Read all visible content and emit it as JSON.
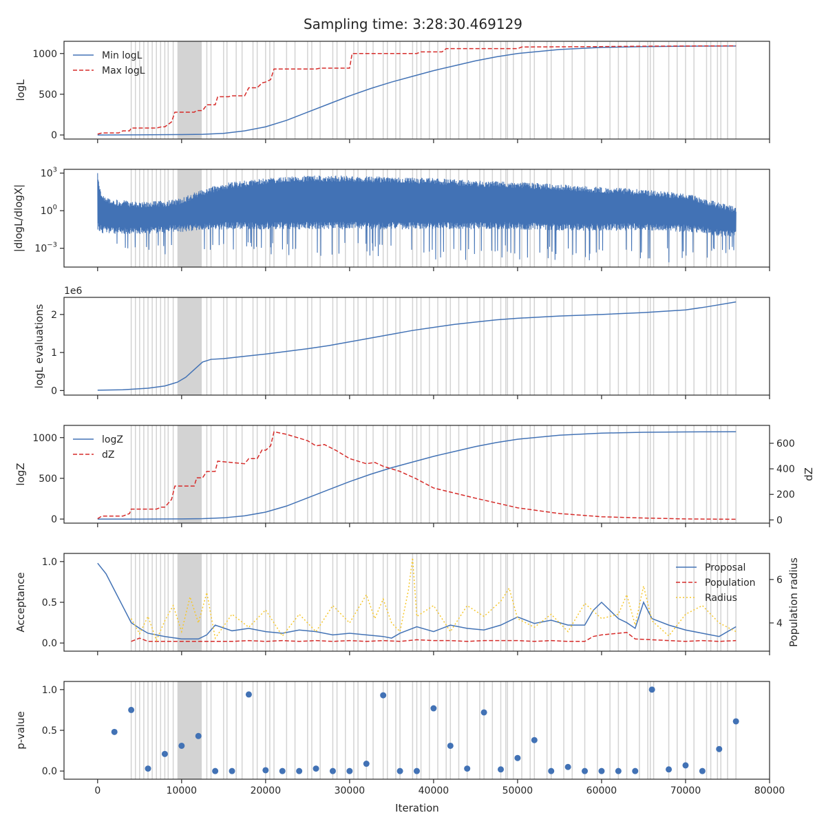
{
  "figure": {
    "title": "Sampling time: 3:28:30.469129",
    "xlabel": "Iteration",
    "xlim": [
      -4000,
      80000
    ],
    "xticks": [
      0,
      10000,
      20000,
      30000,
      40000,
      50000,
      60000,
      70000,
      80000
    ],
    "shaded_region": [
      9500,
      12400
    ],
    "vertical_lines": [
      4000,
      4500,
      5000,
      5500,
      6000,
      6500,
      7000,
      7500,
      8000,
      8400,
      9000,
      13000,
      13500,
      15000,
      15400,
      16500,
      17200,
      18500,
      19000,
      20000,
      20500,
      21000,
      22500,
      23500,
      25000,
      25500,
      26500,
      28000,
      28500,
      29500,
      30500,
      31000,
      32000,
      32800,
      34000,
      34500,
      35500,
      36000,
      37500,
      38000,
      38500,
      39500,
      40500,
      41500,
      42000,
      43000,
      44000,
      45500,
      46000,
      47000,
      48000,
      48600,
      48800,
      49500,
      50500,
      51500,
      52000,
      53500,
      54000,
      55500,
      56500,
      58000,
      59500,
      61000,
      62000,
      63000,
      64500,
      65500,
      65800,
      66200,
      68000,
      69000,
      70000,
      71000,
      72500,
      73000,
      73800,
      74200,
      75000,
      76000
    ],
    "colors": {
      "blue": "#4272b5",
      "red": "#d62a28",
      "yellow": "#f6c628",
      "grey": "#d3d3d3",
      "axis": "#262626"
    }
  },
  "chart_data": [
    {
      "type": "line",
      "ylabel": "logL",
      "ylim": [
        -50,
        1150
      ],
      "yticks": [
        0,
        500,
        1000
      ],
      "legend": "top-left",
      "series": [
        {
          "name": "Min logL",
          "style": "solid",
          "color": "#4272b5",
          "x": [
            0,
            5000,
            10000,
            12500,
            15000,
            17500,
            20000,
            22500,
            25000,
            27500,
            30000,
            32500,
            35000,
            37500,
            40000,
            42500,
            45000,
            47500,
            50000,
            55000,
            60000,
            65000,
            70000,
            76000
          ],
          "y": [
            0,
            2,
            5,
            8,
            20,
            50,
            100,
            180,
            280,
            380,
            480,
            570,
            650,
            720,
            790,
            850,
            910,
            960,
            1000,
            1050,
            1075,
            1085,
            1090,
            1092
          ]
        },
        {
          "name": "Max logL",
          "style": "dashed",
          "color": "#d62a28",
          "x": [
            0,
            500,
            2500,
            3000,
            3800,
            4000,
            7000,
            7600,
            8000,
            8800,
            9200,
            11500,
            11800,
            12500,
            13000,
            14000,
            14300,
            15600,
            16000,
            17500,
            18000,
            19000,
            19600,
            20000,
            20600,
            21000,
            26000,
            26500,
            30000,
            30300,
            38000,
            38500,
            41000,
            41500,
            50000,
            50500,
            60000,
            65000,
            70000,
            76000
          ],
          "y": [
            10,
            25,
            25,
            50,
            50,
            85,
            85,
            100,
            100,
            160,
            280,
            280,
            300,
            300,
            370,
            370,
            470,
            470,
            480,
            480,
            580,
            580,
            640,
            650,
            680,
            810,
            810,
            820,
            820,
            1000,
            1000,
            1020,
            1020,
            1060,
            1060,
            1080,
            1085,
            1090,
            1092,
            1094
          ]
        }
      ]
    },
    {
      "type": "line",
      "ylabel": "|dlogL/dlogX|",
      "yscale": "log",
      "ylim": [
        -4.5,
        3.3
      ],
      "yticks_exp": [
        -3,
        0,
        3
      ],
      "series": [
        {
          "name": "",
          "style": "noisy-band",
          "color": "#4272b5",
          "x": [
            0,
            500,
            2000,
            5000,
            8000,
            10000,
            12000,
            15000,
            20000,
            25000,
            30000,
            35000,
            40000,
            45000,
            50000,
            55000,
            60000,
            65000,
            70000,
            76000
          ],
          "upper": [
            3.0,
            1.2,
            0.9,
            0.7,
            0.8,
            1.0,
            1.6,
            2.2,
            2.6,
            2.8,
            2.8,
            2.7,
            2.6,
            2.4,
            2.3,
            2.1,
            1.9,
            1.7,
            1.4,
            0.3
          ],
          "lower": [
            -1.5,
            -1.8,
            -1.9,
            -1.9,
            -1.8,
            -1.7,
            -1.6,
            -1.5,
            -1.5,
            -1.5,
            -1.5,
            -1.5,
            -1.5,
            -1.5,
            -1.5,
            -1.6,
            -1.6,
            -1.6,
            -1.7,
            -2.2
          ],
          "dip_min": [
            -2.0,
            -2.5,
            -2.7,
            -3.6,
            -3.7,
            -3.6,
            -3.5,
            -3.2,
            -3.5,
            -3.8,
            -3.6,
            -3.7,
            -4.0,
            -3.9,
            -3.9,
            -4.1,
            -4.0,
            -4.3,
            -4.2,
            -3.3
          ]
        }
      ]
    },
    {
      "type": "line",
      "ylabel": "logL evaluations",
      "offset_label": "1e6",
      "ylim": [
        -0.12,
        2.45
      ],
      "yticks": [
        0,
        1,
        2
      ],
      "series": [
        {
          "name": "",
          "style": "solid",
          "color": "#4272b5",
          "x": [
            0,
            3000,
            6000,
            8000,
            9500,
            10500,
            11500,
            12500,
            13500,
            15000,
            17500,
            20000,
            22500,
            25000,
            27500,
            30000,
            32500,
            35000,
            37500,
            40000,
            42500,
            45000,
            47500,
            50000,
            55000,
            60000,
            65000,
            70000,
            72500,
            76000
          ],
          "y": [
            0.01,
            0.02,
            0.06,
            0.12,
            0.22,
            0.35,
            0.55,
            0.75,
            0.82,
            0.84,
            0.9,
            0.96,
            1.03,
            1.1,
            1.18,
            1.28,
            1.38,
            1.48,
            1.58,
            1.66,
            1.74,
            1.8,
            1.86,
            1.9,
            1.96,
            2.0,
            2.05,
            2.12,
            2.2,
            2.33
          ]
        }
      ]
    },
    {
      "type": "line",
      "ylabel": "logZ",
      "ylabel_right": "dZ",
      "ylim": [
        -50,
        1150
      ],
      "yticks": [
        0,
        500,
        1000
      ],
      "ylim_right": [
        -25,
        740
      ],
      "yticks_right": [
        0,
        200,
        400,
        600
      ],
      "legend": "top-left",
      "series": [
        {
          "name": "logZ",
          "style": "solid",
          "color": "#4272b5",
          "axis": "left",
          "x": [
            0,
            5000,
            10000,
            12500,
            15000,
            17500,
            20000,
            22500,
            25000,
            27500,
            30000,
            32500,
            35000,
            37500,
            40000,
            42500,
            45000,
            47500,
            50000,
            55000,
            60000,
            65000,
            70000,
            76000
          ],
          "y": [
            0,
            0,
            2,
            5,
            15,
            40,
            85,
            160,
            260,
            360,
            460,
            550,
            630,
            700,
            770,
            830,
            890,
            940,
            980,
            1030,
            1055,
            1065,
            1070,
            1072
          ]
        },
        {
          "name": "dZ",
          "style": "dashed",
          "color": "#d62a28",
          "axis": "right",
          "x": [
            0,
            500,
            2500,
            3000,
            3800,
            4000,
            7000,
            7600,
            8000,
            8800,
            9200,
            11500,
            11800,
            12500,
            13000,
            14000,
            14300,
            17500,
            18000,
            19000,
            19600,
            20000,
            20600,
            21000,
            22500,
            25000,
            26000,
            27000,
            28500,
            30000,
            32000,
            33000,
            34000,
            36000,
            38000,
            40000,
            45000,
            50000,
            55000,
            60000,
            65000,
            70000,
            76000
          ],
          "y": [
            10,
            30,
            30,
            30,
            50,
            85,
            85,
            100,
            100,
            160,
            265,
            265,
            330,
            330,
            380,
            380,
            460,
            440,
            480,
            480,
            550,
            545,
            580,
            690,
            670,
            620,
            580,
            590,
            540,
            480,
            440,
            450,
            420,
            380,
            320,
            250,
            170,
            95,
            50,
            25,
            15,
            8,
            5
          ]
        }
      ]
    },
    {
      "type": "line",
      "ylabel": "Acceptance",
      "ylabel_right": "Population radius",
      "ylim": [
        -0.1,
        1.1
      ],
      "yticks": [
        0.0,
        0.5,
        1.0
      ],
      "ylim_right": [
        2.7,
        7.2
      ],
      "yticks_right": [
        4,
        6
      ],
      "legend": "top-right",
      "series": [
        {
          "name": "Proposal",
          "style": "solid",
          "color": "#4272b5",
          "axis": "left",
          "x": [
            0,
            1000,
            2000,
            3000,
            4000,
            5000,
            6000,
            8000,
            10000,
            12000,
            13000,
            14000,
            16000,
            18000,
            20000,
            22000,
            24000,
            26000,
            28000,
            30000,
            32000,
            34000,
            35000,
            36000,
            38000,
            40000,
            42000,
            44000,
            46000,
            48000,
            50000,
            52000,
            54000,
            56000,
            58000,
            59000,
            60000,
            62000,
            63000,
            64000,
            65000,
            66000,
            68000,
            70000,
            72000,
            74000,
            76000
          ],
          "y": [
            0.98,
            0.85,
            0.65,
            0.45,
            0.25,
            0.18,
            0.12,
            0.08,
            0.05,
            0.05,
            0.1,
            0.22,
            0.15,
            0.18,
            0.14,
            0.12,
            0.16,
            0.14,
            0.1,
            0.12,
            0.1,
            0.08,
            0.06,
            0.12,
            0.2,
            0.14,
            0.22,
            0.18,
            0.16,
            0.22,
            0.32,
            0.24,
            0.28,
            0.22,
            0.22,
            0.4,
            0.5,
            0.3,
            0.25,
            0.18,
            0.5,
            0.3,
            0.22,
            0.16,
            0.12,
            0.08,
            0.2
          ]
        },
        {
          "name": "Population",
          "style": "dashed",
          "color": "#d62a28",
          "axis": "left",
          "x": [
            4000,
            5000,
            6000,
            8000,
            10000,
            12000,
            14000,
            16000,
            18000,
            20000,
            22000,
            24000,
            26000,
            28000,
            30000,
            32000,
            34000,
            36000,
            38000,
            40000,
            42000,
            44000,
            46000,
            48000,
            50000,
            52000,
            54000,
            56000,
            58000,
            59000,
            60000,
            62000,
            63000,
            64000,
            66000,
            68000,
            70000,
            72000,
            74000,
            76000
          ],
          "y": [
            0.02,
            0.06,
            0.02,
            0.02,
            0.02,
            0.02,
            0.02,
            0.02,
            0.03,
            0.02,
            0.03,
            0.02,
            0.03,
            0.02,
            0.03,
            0.02,
            0.03,
            0.02,
            0.04,
            0.03,
            0.03,
            0.02,
            0.03,
            0.03,
            0.03,
            0.02,
            0.03,
            0.02,
            0.02,
            0.08,
            0.1,
            0.12,
            0.13,
            0.05,
            0.04,
            0.03,
            0.02,
            0.03,
            0.02,
            0.03
          ]
        },
        {
          "name": "Radius",
          "style": "dotted",
          "color": "#f6c628",
          "axis": "right",
          "x": [
            4000,
            5000,
            6000,
            7000,
            8000,
            9000,
            10000,
            11000,
            12000,
            13000,
            14000,
            16000,
            18000,
            20000,
            22000,
            24000,
            26000,
            28000,
            30000,
            32000,
            33000,
            34000,
            35000,
            36000,
            37000,
            37500,
            38000,
            40000,
            42000,
            44000,
            46000,
            48000,
            49000,
            50000,
            52000,
            54000,
            56000,
            58000,
            60000,
            62000,
            63000,
            64000,
            65000,
            66000,
            68000,
            70000,
            72000,
            74000,
            76000
          ],
          "y": [
            4.2,
            3.5,
            4.3,
            3.2,
            4.1,
            4.8,
            3.6,
            5.2,
            4.0,
            5.4,
            3.3,
            4.4,
            3.8,
            4.6,
            3.4,
            4.4,
            3.6,
            4.8,
            4.0,
            5.3,
            4.2,
            5.1,
            4.0,
            3.6,
            5.5,
            7.0,
            4.3,
            4.8,
            3.6,
            4.8,
            4.3,
            5.0,
            5.6,
            4.2,
            3.8,
            4.4,
            3.6,
            4.9,
            4.2,
            4.4,
            5.3,
            3.9,
            5.7,
            4.1,
            3.4,
            4.4,
            4.8,
            4.0,
            3.6
          ]
        }
      ]
    },
    {
      "type": "scatter",
      "ylabel": "p-value",
      "ylim": [
        -0.1,
        1.1
      ],
      "yticks": [
        0.0,
        0.5,
        1.0
      ],
      "series": [
        {
          "name": "",
          "color": "#4272b5",
          "x": [
            2000,
            4000,
            6000,
            8000,
            10000,
            12000,
            14000,
            16000,
            18000,
            20000,
            22000,
            24000,
            26000,
            28000,
            30000,
            32000,
            34000,
            36000,
            38000,
            40000,
            42000,
            44000,
            46000,
            48000,
            50000,
            52000,
            54000,
            56000,
            58000,
            60000,
            62000,
            64000,
            66000,
            68000,
            70000,
            72000,
            74000,
            76000
          ],
          "y": [
            0.48,
            0.75,
            0.03,
            0.21,
            0.31,
            0.43,
            0.0,
            0.0,
            0.94,
            0.01,
            0.0,
            0.0,
            0.03,
            0.0,
            0.0,
            0.09,
            0.93,
            0.0,
            0.0,
            0.77,
            0.31,
            0.03,
            0.72,
            0.02,
            0.16,
            0.38,
            0.0,
            0.05,
            0.0,
            0.0,
            0.0,
            0.0,
            1.0,
            0.02,
            0.07,
            0.0,
            0.27,
            0.61
          ]
        }
      ]
    }
  ]
}
